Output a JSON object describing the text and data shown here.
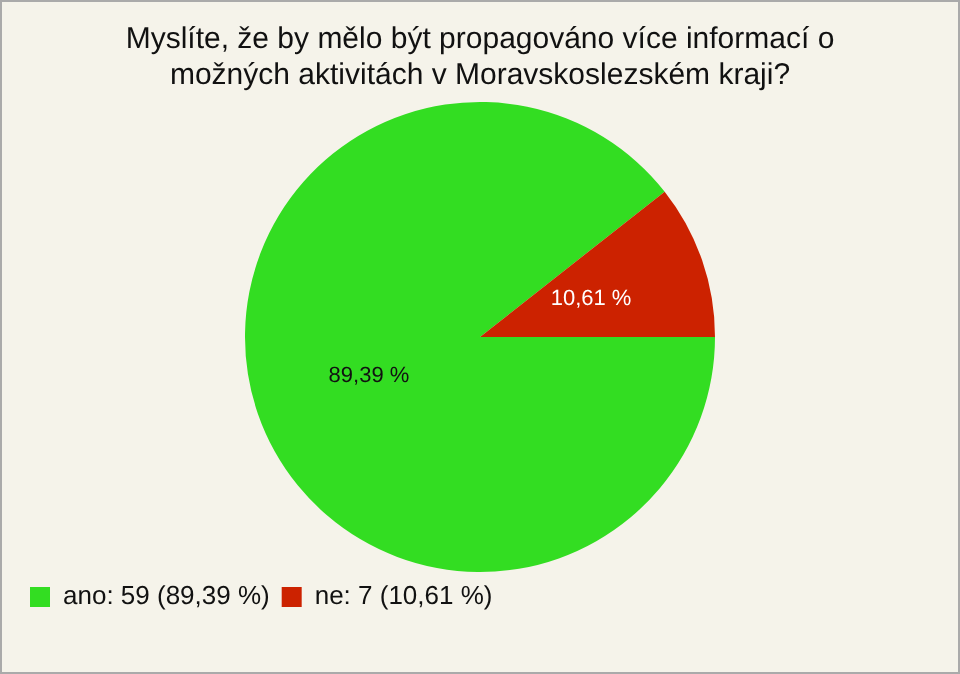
{
  "chart_data": {
    "type": "pie",
    "title": "Myslíte, že by mělo být propagováno více informací o možných aktivitách v Moravskoslezském kraji?",
    "categories": [
      "ano: 59 (89,39 %)",
      "ne: 7 (10,61 %)"
    ],
    "values": [
      89.39,
      10.61
    ],
    "colors": [
      "#33dd22",
      "#cc2200"
    ],
    "value_labels": [
      "89,39 %",
      "10,61 %"
    ],
    "legend": "bottom left"
  }
}
